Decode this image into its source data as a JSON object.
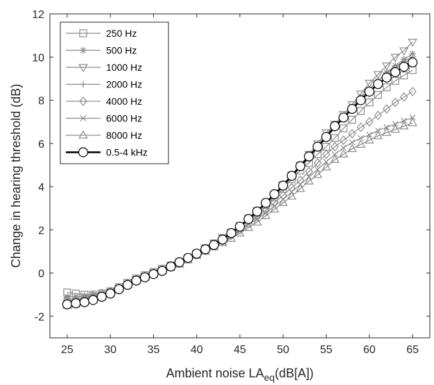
{
  "chart_data": {
    "type": "line",
    "title": "",
    "xlabel": "Ambient noise LA",
    "xlabel_subscript": "eq",
    "xlabel_suffix": "(dB[A])",
    "ylabel": "Change in hearing threshold (dB)",
    "xlim": [
      23,
      67
    ],
    "ylim": [
      -3,
      12
    ],
    "xticks": [
      25,
      30,
      35,
      40,
      45,
      50,
      55,
      60,
      65
    ],
    "yticks": [
      -2,
      0,
      2,
      4,
      6,
      8,
      10,
      12
    ],
    "xtick_labels": [
      "25",
      "30",
      "35",
      "40",
      "45",
      "50",
      "55",
      "60",
      "65"
    ],
    "ytick_labels": [
      "-2",
      "0",
      "2",
      "4",
      "6",
      "8",
      "10",
      "12"
    ],
    "legend_position": "top-left",
    "grid": false,
    "x": [
      25,
      26,
      27,
      28,
      29,
      30,
      31,
      32,
      33,
      34,
      35,
      36,
      37,
      38,
      39,
      40,
      41,
      42,
      43,
      44,
      45,
      46,
      47,
      48,
      49,
      50,
      51,
      52,
      53,
      54,
      55,
      56,
      57,
      58,
      59,
      60,
      61,
      62,
      63,
      64,
      65
    ],
    "series": [
      {
        "name": "250 Hz",
        "marker": "square",
        "color": "#8c8c8c",
        "values": [
          -0.9,
          -0.95,
          -1.0,
          -1.0,
          -0.95,
          -0.85,
          -0.65,
          -0.45,
          -0.25,
          -0.1,
          0.05,
          0.2,
          0.35,
          0.5,
          0.7,
          0.9,
          1.15,
          1.35,
          1.6,
          1.85,
          2.1,
          2.5,
          2.8,
          3.15,
          3.5,
          3.9,
          4.35,
          4.75,
          5.1,
          5.5,
          5.85,
          6.25,
          6.7,
          7.1,
          7.5,
          7.9,
          8.25,
          8.6,
          8.9,
          9.15,
          9.4
        ]
      },
      {
        "name": "500 Hz",
        "marker": "asterisk",
        "color": "#8c8c8c",
        "values": [
          -1.1,
          -1.1,
          -1.05,
          -1.0,
          -0.95,
          -0.85,
          -0.65,
          -0.45,
          -0.25,
          -0.1,
          0.05,
          0.2,
          0.35,
          0.5,
          0.7,
          0.9,
          1.1,
          1.35,
          1.6,
          1.85,
          2.15,
          2.45,
          2.8,
          3.15,
          3.55,
          4.0,
          4.45,
          4.9,
          5.3,
          5.8,
          6.25,
          6.7,
          7.15,
          7.6,
          8.1,
          8.5,
          8.9,
          9.3,
          9.6,
          9.9,
          10.15
        ]
      },
      {
        "name": "1000 Hz",
        "marker": "triangle-down",
        "color": "#8c8c8c",
        "values": [
          -1.4,
          -1.35,
          -1.3,
          -1.2,
          -1.05,
          -0.9,
          -0.7,
          -0.5,
          -0.3,
          -0.15,
          0.0,
          0.15,
          0.3,
          0.5,
          0.7,
          0.9,
          1.15,
          1.4,
          1.65,
          1.9,
          2.2,
          2.55,
          2.9,
          3.25,
          3.65,
          4.1,
          4.55,
          5.0,
          5.5,
          6.0,
          6.5,
          6.9,
          7.35,
          7.8,
          8.3,
          8.8,
          9.2,
          9.6,
          10.0,
          10.3,
          10.7
        ]
      },
      {
        "name": "2000 Hz",
        "marker": "plus",
        "color": "#8c8c8c",
        "values": [
          -1.3,
          -1.25,
          -1.2,
          -1.1,
          -1.0,
          -0.85,
          -0.65,
          -0.45,
          -0.3,
          -0.15,
          0.0,
          0.15,
          0.3,
          0.5,
          0.7,
          0.9,
          1.15,
          1.4,
          1.65,
          1.9,
          2.15,
          2.5,
          2.85,
          3.2,
          3.6,
          4.0,
          4.45,
          4.9,
          5.35,
          5.85,
          6.3,
          6.75,
          7.2,
          7.65,
          8.1,
          8.5,
          8.9,
          9.25,
          9.55,
          9.8,
          10.0
        ]
      },
      {
        "name": "4000 Hz",
        "marker": "diamond",
        "color": "#8c8c8c",
        "values": [
          -1.2,
          -1.2,
          -1.15,
          -1.05,
          -0.95,
          -0.85,
          -0.7,
          -0.5,
          -0.3,
          -0.15,
          0.0,
          0.15,
          0.3,
          0.45,
          0.65,
          0.85,
          1.05,
          1.3,
          1.5,
          1.75,
          2.0,
          2.3,
          2.6,
          2.9,
          3.25,
          3.6,
          3.95,
          4.3,
          4.7,
          5.1,
          5.5,
          5.85,
          6.15,
          6.45,
          6.75,
          7.0,
          7.3,
          7.6,
          7.9,
          8.15,
          8.4
        ]
      },
      {
        "name": "6000 Hz",
        "marker": "cross",
        "color": "#8c8c8c",
        "values": [
          -1.2,
          -1.2,
          -1.15,
          -1.05,
          -0.95,
          -0.85,
          -0.7,
          -0.5,
          -0.3,
          -0.15,
          0.0,
          0.15,
          0.3,
          0.45,
          0.65,
          0.85,
          1.05,
          1.25,
          1.45,
          1.7,
          1.95,
          2.25,
          2.5,
          2.8,
          3.1,
          3.4,
          3.75,
          4.1,
          4.45,
          4.8,
          5.15,
          5.5,
          5.8,
          6.05,
          6.25,
          6.4,
          6.6,
          6.75,
          6.9,
          7.05,
          7.2
        ]
      },
      {
        "name": "8000 Hz",
        "marker": "triangle-up",
        "color": "#8c8c8c",
        "values": [
          -1.5,
          -1.45,
          -1.35,
          -1.25,
          -1.1,
          -0.95,
          -0.75,
          -0.55,
          -0.35,
          -0.2,
          -0.05,
          0.1,
          0.25,
          0.4,
          0.6,
          0.8,
          1.0,
          1.2,
          1.4,
          1.6,
          1.85,
          2.1,
          2.35,
          2.65,
          2.95,
          3.25,
          3.55,
          3.9,
          4.25,
          4.55,
          4.9,
          5.25,
          5.5,
          5.75,
          5.95,
          6.15,
          6.35,
          6.5,
          6.65,
          6.8,
          6.95
        ]
      },
      {
        "name": "0.5-4 kHz",
        "marker": "circle",
        "color": "#000000",
        "values": [
          -1.45,
          -1.4,
          -1.35,
          -1.25,
          -1.1,
          -0.95,
          -0.75,
          -0.55,
          -0.35,
          -0.2,
          -0.05,
          0.1,
          0.3,
          0.5,
          0.7,
          0.9,
          1.1,
          1.3,
          1.55,
          1.85,
          2.15,
          2.5,
          2.85,
          3.25,
          3.65,
          4.05,
          4.5,
          4.95,
          5.4,
          5.85,
          6.3,
          6.8,
          7.2,
          7.6,
          8.0,
          8.4,
          8.75,
          9.05,
          9.3,
          9.55,
          9.75
        ]
      }
    ]
  }
}
